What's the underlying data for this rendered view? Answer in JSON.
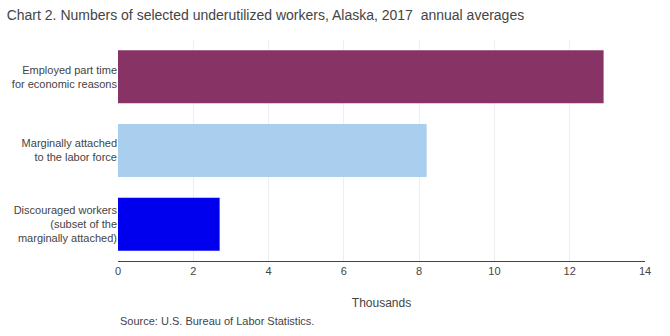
{
  "chart_data": {
    "type": "bar",
    "orientation": "horizontal",
    "title": "Chart 2. Numbers of selected underutilized workers, Alaska, 2017  annual averages",
    "categories": [
      "Discouraged workers\n(subset of the\nmarginally attached)",
      "Marginally attached\nto the labor force",
      "Employed part time\nfor economic reasons"
    ],
    "values": [
      2.7,
      8.2,
      12.9
    ],
    "colors": [
      "#0000ee",
      "#aacfee",
      "#883366"
    ],
    "xlim": [
      0,
      14
    ],
    "xticks": [
      0,
      2,
      4,
      6,
      8,
      10,
      12,
      14
    ],
    "xlabel": "Thousands",
    "grid": true,
    "annotations": [
      "Source: U.S. Bureau of Labor Statistics."
    ]
  }
}
